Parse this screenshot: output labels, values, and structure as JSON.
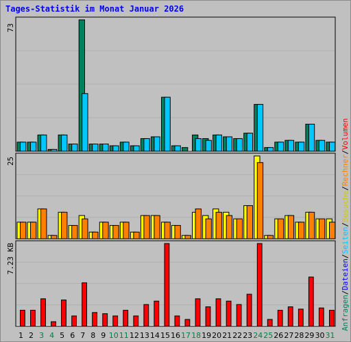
{
  "title": "Tages-Statistik im Monat Januar 2026",
  "colors": {
    "anfragen": "#00805c",
    "dateien": "#0000ff",
    "seiten": "#00c8ff",
    "besuche": "#ffff00",
    "rechner": "#ff8000",
    "volumen": "#ff0000",
    "weekend_label": "#008040",
    "weekday_label": "#000000",
    "plot_bg": "#c0c0c0"
  },
  "right_legend": {
    "line1": [
      {
        "text": "Anfragen",
        "color": "#00805c"
      },
      {
        "text": "/",
        "color": "#000000"
      },
      {
        "text": "Dateien",
        "color": "#0000ff"
      },
      {
        "text": "/",
        "color": "#000000"
      },
      {
        "text": "Seiten",
        "color": "#00c8ff"
      },
      {
        "text": "/",
        "color": "#000000"
      },
      {
        "text": "Besuche",
        "color": "#cccc00"
      },
      {
        "text": "/",
        "color": "#000000"
      },
      {
        "text": "Rechner",
        "color": "#ff8000"
      },
      {
        "text": "/",
        "color": "#000000"
      },
      {
        "text": "Volumen",
        "color": "#ff0000"
      }
    ]
  },
  "chart_data": [
    {
      "type": "bar",
      "panel": "top",
      "max_label": "73",
      "ylim": [
        0,
        73
      ],
      "categories": [
        "1",
        "2",
        "3",
        "4",
        "5",
        "6",
        "7",
        "8",
        "9",
        "10",
        "11",
        "12",
        "13",
        "14",
        "15",
        "16",
        "17",
        "18",
        "19",
        "20",
        "21",
        "22",
        "23",
        "24",
        "25",
        "26",
        "27",
        "28",
        "29",
        "30",
        "31"
      ],
      "weekend_days": [
        "3",
        "4",
        "10",
        "11",
        "17",
        "18",
        "24",
        "25",
        "31"
      ],
      "series": [
        {
          "name": "Anfragen",
          "values": [
            5,
            5,
            9,
            1,
            9,
            4,
            73,
            4,
            4,
            3,
            5,
            3,
            7,
            8,
            30,
            3,
            2,
            9,
            7,
            9,
            8,
            7,
            10,
            26,
            2,
            5,
            6,
            5,
            15,
            6,
            5
          ]
        },
        {
          "name": "Seiten",
          "values": [
            5,
            5,
            9,
            1,
            9,
            4,
            32,
            4,
            4,
            3,
            5,
            3,
            7,
            8,
            30,
            3,
            0,
            7,
            6,
            9,
            8,
            7,
            10,
            26,
            2,
            5,
            6,
            5,
            15,
            6,
            5
          ]
        }
      ]
    },
    {
      "type": "bar",
      "panel": "middle",
      "max_label": "25",
      "ylim": [
        0,
        25
      ],
      "categories": [
        "1",
        "2",
        "3",
        "4",
        "5",
        "6",
        "7",
        "8",
        "9",
        "10",
        "11",
        "12",
        "13",
        "14",
        "15",
        "16",
        "17",
        "18",
        "19",
        "20",
        "21",
        "22",
        "23",
        "24",
        "25",
        "26",
        "27",
        "28",
        "29",
        "30",
        "31"
      ],
      "series": [
        {
          "name": "Besuche",
          "values": [
            5,
            5,
            9,
            1,
            8,
            4,
            7,
            2,
            5,
            4,
            5,
            2,
            7,
            7,
            5,
            4,
            1,
            8,
            7,
            9,
            8,
            6,
            10,
            25,
            1,
            6,
            7,
            5,
            8,
            6,
            6
          ]
        },
        {
          "name": "Rechner",
          "values": [
            5,
            5,
            9,
            1,
            8,
            4,
            6,
            2,
            5,
            4,
            5,
            2,
            7,
            7,
            5,
            4,
            1,
            9,
            6,
            8,
            7,
            6,
            10,
            23,
            1,
            6,
            7,
            5,
            8,
            6,
            5
          ]
        }
      ]
    },
    {
      "type": "bar",
      "panel": "bottom",
      "max_label": "7.23 KB",
      "ylim": [
        0,
        7.23
      ],
      "categories": [
        "1",
        "2",
        "3",
        "4",
        "5",
        "6",
        "7",
        "8",
        "9",
        "10",
        "11",
        "12",
        "13",
        "14",
        "15",
        "16",
        "17",
        "18",
        "19",
        "20",
        "21",
        "22",
        "23",
        "24",
        "25",
        "26",
        "27",
        "28",
        "29",
        "30",
        "31"
      ],
      "series": [
        {
          "name": "Volumen",
          "values": [
            1.4,
            1.4,
            2.4,
            0.4,
            2.3,
            0.9,
            3.8,
            1.2,
            1.1,
            0.9,
            1.4,
            0.9,
            1.9,
            2.2,
            7.23,
            0.9,
            0.6,
            2.4,
            1.7,
            2.4,
            2.2,
            1.9,
            2.8,
            7.23,
            0.6,
            1.4,
            1.7,
            1.5,
            4.3,
            1.6,
            1.4
          ]
        }
      ]
    }
  ]
}
